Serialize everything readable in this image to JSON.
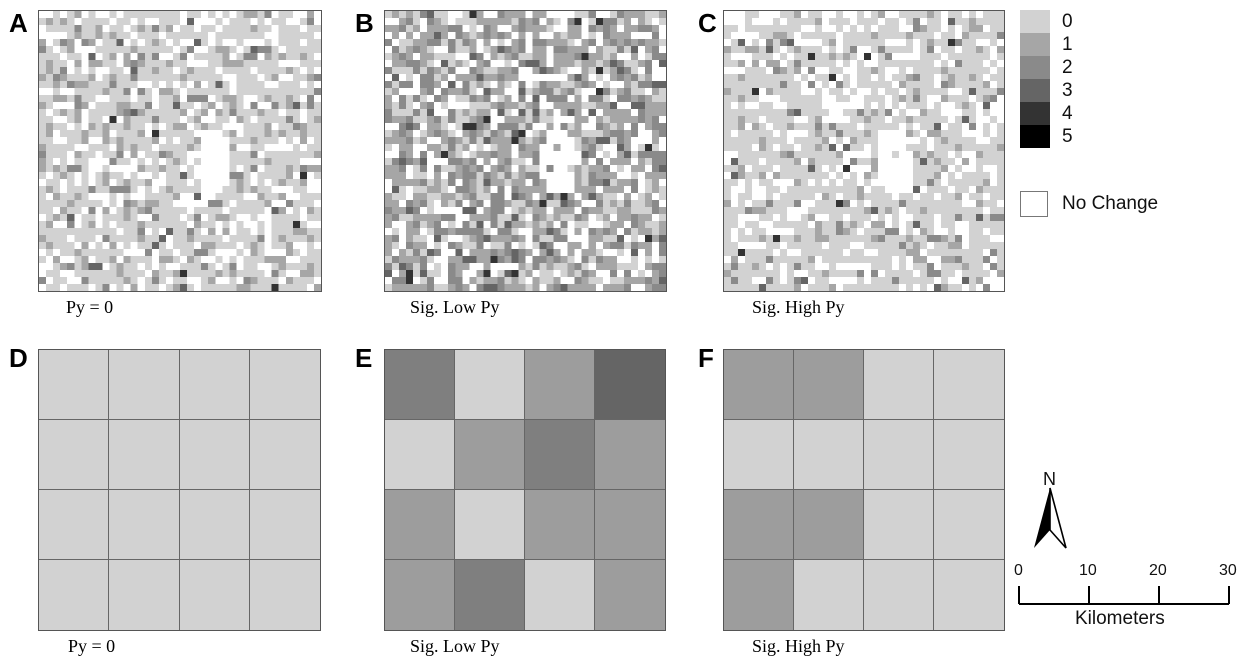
{
  "panels_top": [
    {
      "letter": "A",
      "caption": "Py = 0",
      "seed": 11,
      "profile": "a"
    },
    {
      "letter": "B",
      "caption": "Sig. Low Py",
      "seed": 27,
      "profile": "b"
    },
    {
      "letter": "C",
      "caption": "Sig. High Py",
      "seed": 53,
      "profile": "c"
    }
  ],
  "panels_bottom": [
    {
      "letter": "D",
      "caption": "Py = 0",
      "values": [
        0,
        0,
        0,
        0,
        0,
        0,
        0,
        0,
        0,
        0,
        0,
        0,
        0,
        0,
        0,
        0
      ]
    },
    {
      "letter": "E",
      "caption": "Sig. Low Py",
      "values": [
        2,
        0,
        1,
        3,
        0,
        1,
        2,
        1,
        1,
        0,
        1,
        1,
        1,
        2,
        0,
        1
      ]
    },
    {
      "letter": "F",
      "caption": "Sig. High Py",
      "values": [
        1,
        1,
        0,
        0,
        0,
        0,
        0,
        0,
        1,
        1,
        0,
        0,
        1,
        0,
        0,
        0
      ]
    }
  ],
  "legend": {
    "items": [
      {
        "label": "0",
        "color": "#d2d2d2"
      },
      {
        "label": "1",
        "color": "#a6a6a6"
      },
      {
        "label": "2",
        "color": "#8a8a8a"
      },
      {
        "label": "3",
        "color": "#656565"
      },
      {
        "label": "4",
        "color": "#333333"
      },
      {
        "label": "5",
        "color": "#000000"
      }
    ],
    "no_change_label": "No Change"
  },
  "north_label": "N",
  "scale_bar": {
    "ticks": [
      "0",
      "10",
      "20",
      "30"
    ],
    "unit": "Kilometers"
  }
}
